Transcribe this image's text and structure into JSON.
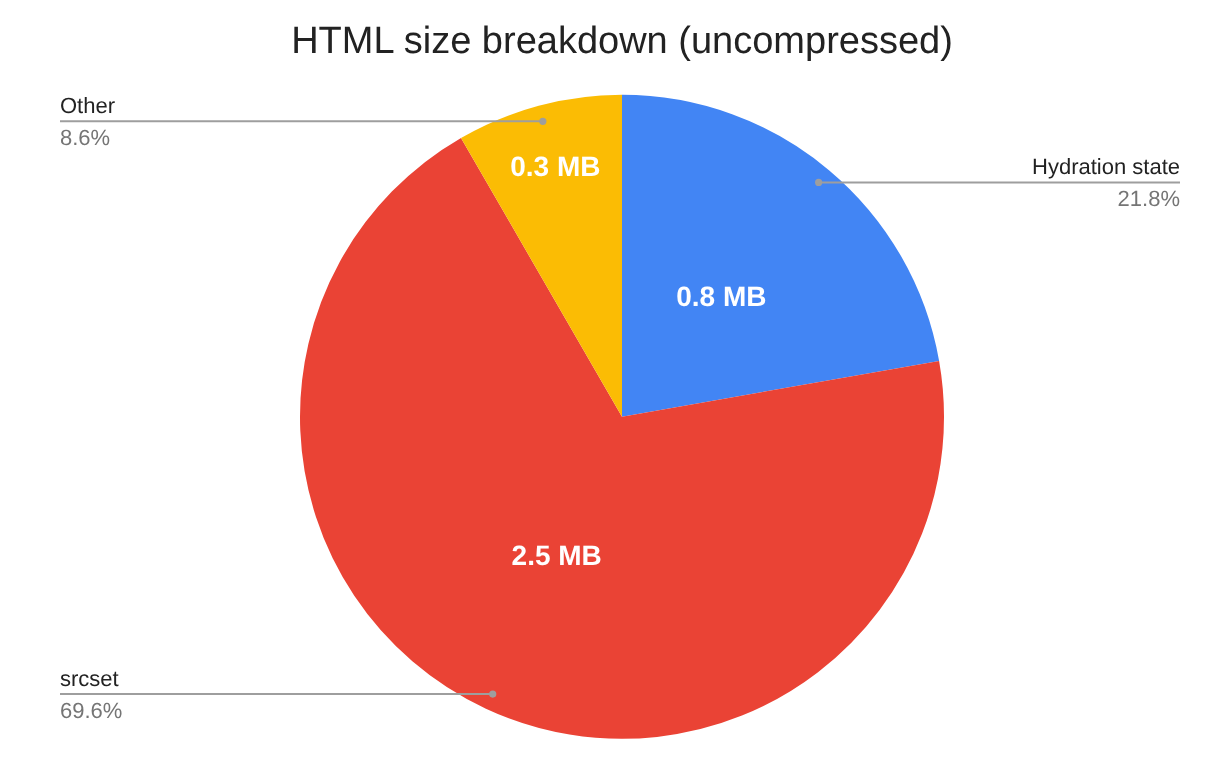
{
  "chart_data": {
    "type": "pie",
    "title": "HTML size breakdown (uncompressed)",
    "categories": [
      "Hydration state",
      "srcset",
      "Other"
    ],
    "values": [
      0.8,
      2.5,
      0.3
    ],
    "colors": [
      "#4285f4",
      "#ea4335",
      "#fbbc04"
    ],
    "value_labels": [
      "0.8 MB",
      "2.5 MB",
      "0.3 MB"
    ],
    "annotations": [
      "21.8%",
      "69.6%",
      "8.6%"
    ],
    "legend": false
  }
}
